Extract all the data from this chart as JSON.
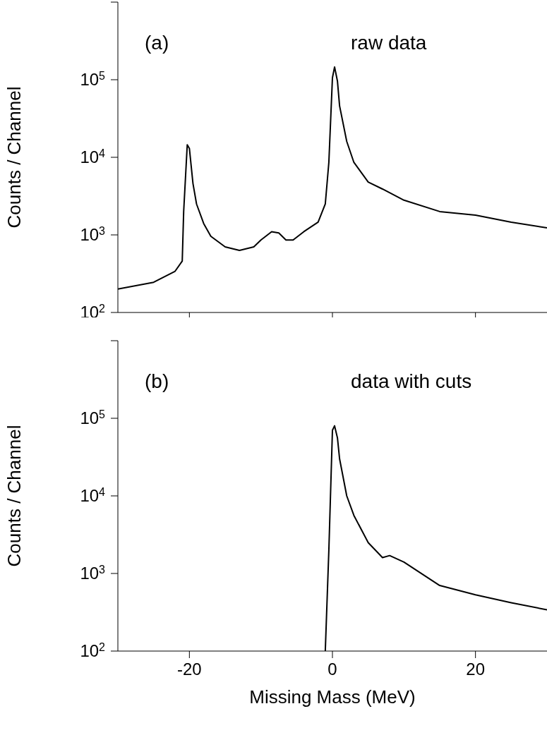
{
  "chart_data": [
    {
      "type": "line",
      "annotations": [
        "(a)",
        "raw data"
      ],
      "ylabel": "Counts / Channel",
      "log": "y",
      "xlim": [
        -30,
        30
      ],
      "xticks": [
        -20,
        0,
        20
      ],
      "ylim": [
        100,
        1000000
      ],
      "yticks": [
        {
          "value": 100,
          "label": "10$^{2}$"
        },
        {
          "value": 1000,
          "label": "10$^{3}$"
        },
        {
          "value": 10000,
          "label": "10$^{4}$"
        },
        {
          "value": 100000,
          "label": "10$^{5}$"
        },
        {
          "value": 1000000,
          "label": null
        }
      ],
      "tick_labels": "y",
      "series": [
        {
          "color": "#000000",
          "x": [
            -30,
            -25,
            -22,
            -21,
            -20.8,
            -20.3,
            -20,
            -19.5,
            -19,
            -18,
            -17,
            -15,
            -13,
            -11,
            -10,
            -8.5,
            -7.5,
            -6.5,
            -5.5,
            -4,
            -2,
            -1,
            -0.5,
            0,
            0.3,
            0.7,
            1,
            2,
            3,
            5,
            7,
            10,
            15,
            20,
            25,
            30
          ],
          "values": [
            200,
            245,
            340,
            460,
            2000,
            14500,
            13000,
            4600,
            2500,
            1400,
            960,
            700,
            630,
            700,
            860,
            1100,
            1060,
            860,
            860,
            1100,
            1460,
            2500,
            8600,
            106000,
            146000,
            96000,
            46000,
            16000,
            8600,
            4800,
            3900,
            2800,
            2000,
            1800,
            1460,
            1230
          ]
        }
      ]
    },
    {
      "type": "line",
      "annotations": [
        "(b)",
        "data with cuts"
      ],
      "ylabel": "Counts / Channel",
      "xlabel": "Missing Mass (MeV)",
      "log": "y",
      "xlim": [
        -30,
        30
      ],
      "xticks": [
        -20,
        0,
        20
      ],
      "ylim": [
        100,
        1000000
      ],
      "yticks": [
        {
          "value": 100,
          "label": "10$^{2}$"
        },
        {
          "value": 1000,
          "label": "10$^{3}$"
        },
        {
          "value": 10000,
          "label": "10$^{4}$"
        },
        {
          "value": 100000,
          "label": "10$^{5}$"
        },
        {
          "value": 1000000,
          "label": null
        }
      ],
      "series": [
        {
          "color": "#000000",
          "x": [
            -1,
            -0.5,
            0,
            0.3,
            0.7,
            1,
            2,
            3,
            5,
            7,
            8,
            10,
            15,
            20,
            25,
            30
          ],
          "values": [
            100,
            2000,
            70000,
            80000,
            56000,
            30000,
            10000,
            5600,
            2500,
            1600,
            1700,
            1400,
            700,
            530,
            420,
            340
          ]
        }
      ]
    }
  ]
}
